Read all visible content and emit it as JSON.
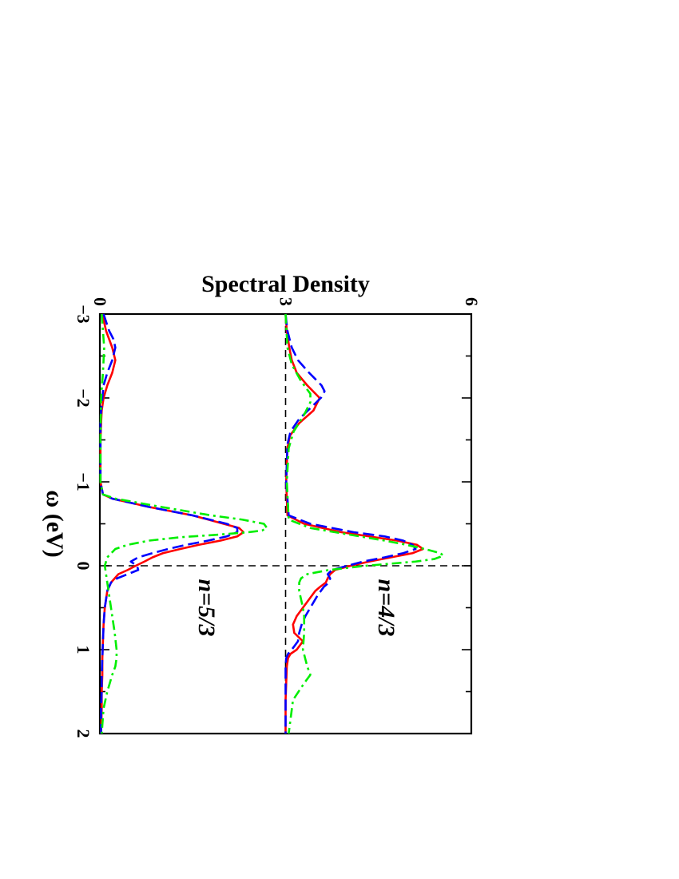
{
  "chart_data": {
    "type": "line",
    "orientation": "rotated 90 degrees clockwise",
    "xlabel": "ω (eV)",
    "ylabel": "Spectral Density",
    "xlim": [
      -3,
      2
    ],
    "ylim": [
      0,
      6
    ],
    "x_ticks": [
      "−3",
      "−2",
      "−1",
      "0",
      "1",
      "2"
    ],
    "y_ticks": [
      "0",
      "3",
      "6"
    ],
    "annotations": [
      {
        "text": "n=4/3",
        "x": 0.5,
        "y": 4.5
      },
      {
        "text": "n=5/3",
        "x": 0.5,
        "y": 1.6
      }
    ],
    "reference_lines": {
      "vertical_x": 0,
      "horizontal_y": 3
    },
    "series": [
      {
        "color": "#ff0000",
        "style": "solid",
        "x": [
          -3.0,
          -2.8,
          -2.6,
          -2.45,
          -2.3,
          -2.15,
          -2.0,
          -1.85,
          -1.7,
          -1.55,
          -1.4,
          -1.0,
          -0.6,
          -0.5,
          -0.4,
          -0.35,
          -0.3,
          -0.25,
          -0.2,
          -0.15,
          -0.1,
          -0.05,
          0.0,
          0.05,
          0.1,
          0.15,
          0.2,
          0.25,
          0.3,
          0.4,
          0.5,
          0.6,
          0.7,
          0.8,
          0.9,
          1.0,
          1.05,
          1.1,
          1.2,
          1.4,
          1.6,
          2.0
        ],
        "y": [
          3.0,
          3.02,
          3.06,
          3.1,
          3.18,
          3.35,
          3.55,
          3.45,
          3.22,
          3.07,
          3.03,
          3.01,
          3.03,
          3.3,
          3.9,
          4.35,
          4.8,
          5.12,
          5.22,
          5.05,
          4.7,
          4.35,
          4.05,
          3.8,
          3.72,
          3.68,
          3.65,
          3.56,
          3.48,
          3.38,
          3.28,
          3.18,
          3.12,
          3.14,
          3.28,
          3.18,
          3.08,
          3.04,
          3.02,
          3.01,
          3.0,
          3.0
        ]
      },
      {
        "color": "#0000ff",
        "style": "dashed",
        "x": [
          -3.0,
          -2.8,
          -2.6,
          -2.45,
          -2.3,
          -2.15,
          -2.08,
          -2.0,
          -1.9,
          -1.75,
          -1.6,
          -1.45,
          -1.0,
          -0.6,
          -0.5,
          -0.4,
          -0.35,
          -0.3,
          -0.25,
          -0.2,
          -0.15,
          -0.1,
          -0.05,
          0.0,
          0.05,
          0.1,
          0.15,
          0.2,
          0.25,
          0.35,
          0.5,
          0.6,
          0.7,
          0.8,
          0.9,
          1.0,
          1.05,
          1.1,
          1.2,
          1.4,
          1.6,
          2.0
        ],
        "y": [
          3.0,
          3.03,
          3.1,
          3.2,
          3.38,
          3.58,
          3.63,
          3.57,
          3.43,
          3.22,
          3.08,
          3.03,
          3.01,
          3.05,
          3.4,
          4.1,
          4.6,
          4.9,
          5.05,
          5.1,
          4.9,
          4.6,
          4.25,
          4.0,
          3.75,
          3.68,
          3.72,
          3.7,
          3.62,
          3.52,
          3.4,
          3.32,
          3.26,
          3.22,
          3.2,
          3.1,
          3.04,
          3.01,
          3.0,
          3.0,
          3.0,
          3.0
        ]
      },
      {
        "color": "#00ee00",
        "style": "dash-dot",
        "x": [
          -3.0,
          -2.6,
          -2.4,
          -2.2,
          -2.05,
          -1.95,
          -1.8,
          -1.6,
          -1.4,
          -1.0,
          -0.55,
          -0.45,
          -0.4,
          -0.35,
          -0.3,
          -0.25,
          -0.2,
          -0.15,
          -0.12,
          -0.08,
          -0.05,
          0.0,
          0.05,
          0.1,
          0.15,
          0.2,
          0.3,
          0.4,
          0.5,
          0.6,
          0.8,
          1.0,
          1.2,
          1.3,
          1.4,
          1.6,
          2.0
        ],
        "y": [
          3.0,
          3.03,
          3.1,
          3.25,
          3.4,
          3.4,
          3.3,
          3.13,
          3.05,
          3.02,
          3.05,
          3.4,
          3.8,
          4.2,
          4.6,
          4.95,
          5.25,
          5.5,
          5.55,
          5.4,
          5.1,
          4.3,
          3.7,
          3.35,
          3.25,
          3.22,
          3.22,
          3.25,
          3.28,
          3.3,
          3.3,
          3.28,
          3.35,
          3.4,
          3.3,
          3.12,
          3.05
        ]
      },
      {
        "color": "#ff0000",
        "style": "solid",
        "x": [
          -3.0,
          -2.8,
          -2.6,
          -2.45,
          -2.3,
          -2.15,
          -2.0,
          -1.85,
          -1.7,
          -1.5,
          -1.0,
          -0.85,
          -0.8,
          -0.7,
          -0.6,
          -0.5,
          -0.45,
          -0.4,
          -0.35,
          -0.3,
          -0.25,
          -0.2,
          -0.15,
          -0.1,
          -0.05,
          0.0,
          0.05,
          0.1,
          0.2,
          0.3,
          0.5,
          0.7,
          0.9,
          1.1,
          1.3,
          1.5,
          1.7,
          2.0
        ],
        "y": [
          0.04,
          0.1,
          0.2,
          0.25,
          0.2,
          0.12,
          0.06,
          0.03,
          0.02,
          0.01,
          0.01,
          0.05,
          0.2,
          0.8,
          1.5,
          2.0,
          2.25,
          2.32,
          2.22,
          1.95,
          1.6,
          1.3,
          1.02,
          0.85,
          0.72,
          0.58,
          0.45,
          0.3,
          0.18,
          0.12,
          0.08,
          0.06,
          0.05,
          0.04,
          0.04,
          0.03,
          0.03,
          0.02
        ]
      },
      {
        "color": "#0000ff",
        "style": "dashed",
        "x": [
          -3.0,
          -2.8,
          -2.7,
          -2.6,
          -2.45,
          -2.3,
          -2.15,
          -2.0,
          -1.85,
          -1.7,
          -1.5,
          -1.0,
          -0.85,
          -0.8,
          -0.7,
          -0.6,
          -0.5,
          -0.45,
          -0.4,
          -0.35,
          -0.3,
          -0.25,
          -0.2,
          -0.15,
          -0.1,
          -0.05,
          0.0,
          0.05,
          0.1,
          0.15,
          0.2,
          0.3,
          0.5,
          0.7,
          0.9,
          1.1,
          1.3,
          1.5,
          1.7,
          2.0
        ],
        "y": [
          0.06,
          0.15,
          0.22,
          0.25,
          0.2,
          0.12,
          0.06,
          0.04,
          0.02,
          0.01,
          0.01,
          0.01,
          0.05,
          0.2,
          0.8,
          1.5,
          2.05,
          2.22,
          2.22,
          2.05,
          1.75,
          1.4,
          1.1,
          0.85,
          0.62,
          0.5,
          0.6,
          0.62,
          0.45,
          0.28,
          0.18,
          0.12,
          0.08,
          0.06,
          0.05,
          0.04,
          0.03,
          0.03,
          0.02,
          0.02
        ]
      },
      {
        "color": "#00ee00",
        "style": "dash-dot",
        "x": [
          -3.0,
          -2.6,
          -2.3,
          -2.0,
          -1.5,
          -1.0,
          -0.85,
          -0.8,
          -0.7,
          -0.6,
          -0.55,
          -0.5,
          -0.45,
          -0.42,
          -0.4,
          -0.37,
          -0.34,
          -0.3,
          -0.25,
          -0.2,
          -0.1,
          0.0,
          0.1,
          0.2,
          0.4,
          0.6,
          0.8,
          1.0,
          1.1,
          1.2,
          1.3,
          1.5,
          1.7,
          2.0
        ],
        "y": [
          0.03,
          0.07,
          0.05,
          0.02,
          0.01,
          0.01,
          0.05,
          0.25,
          1.0,
          1.8,
          2.3,
          2.65,
          2.7,
          2.62,
          2.4,
          1.9,
          1.3,
          0.8,
          0.45,
          0.25,
          0.12,
          0.08,
          0.1,
          0.12,
          0.16,
          0.2,
          0.24,
          0.27,
          0.27,
          0.25,
          0.2,
          0.12,
          0.06,
          0.03
        ]
      }
    ]
  }
}
